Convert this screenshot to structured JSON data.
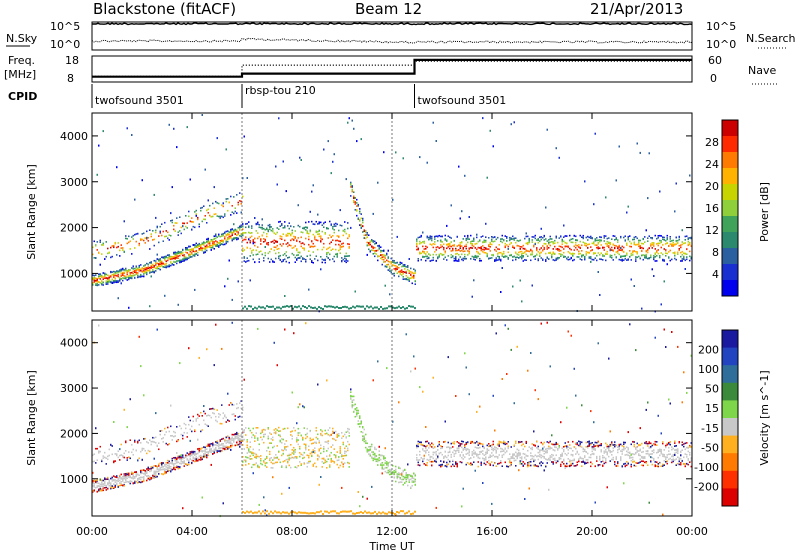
{
  "header": {
    "station": "Blackstone (fitACF)",
    "beam": "Beam 12",
    "date": "21/Apr/2013"
  },
  "noise_panel": {
    "left_label": "N.Sky",
    "right_label": "N.Search",
    "ticks_left": [
      "10^5",
      "10^0"
    ],
    "ticks_right": [
      "10^5",
      "10^0"
    ]
  },
  "freq_panel": {
    "left_label_1": "Freq.",
    "left_label_2": "[MHz]",
    "right_label": "Nave",
    "ticks_left": [
      "18",
      "8"
    ],
    "ticks_right": [
      "60",
      "0"
    ],
    "freq_mhz": [
      [
        0,
        10.2
      ],
      [
        6.0,
        10.2
      ],
      [
        6.0,
        11.5
      ],
      [
        12.9,
        11.5
      ],
      [
        12.9,
        17.2
      ],
      [
        24,
        17.2
      ]
    ],
    "nave": [
      [
        0,
        14
      ],
      [
        6.0,
        14
      ],
      [
        6.0,
        42
      ],
      [
        12.9,
        42
      ],
      [
        12.9,
        52
      ],
      [
        24,
        52
      ]
    ]
  },
  "cpid": {
    "label": "CPID",
    "segments": [
      {
        "text": "twofsound 3501",
        "start": 0,
        "end": 6.0
      },
      {
        "text": "rbsp-tou 210",
        "start": 6.0,
        "end": 12.9
      },
      {
        "text": "twofsound 3501",
        "start": 12.9,
        "end": 24
      }
    ]
  },
  "power_panel": {
    "ylabel": "Slant Range [km]",
    "colorbar_label": "Power [dB]",
    "colorbar_ticks": [
      "28",
      "24",
      "20",
      "16",
      "12",
      "8",
      "4"
    ],
    "colors": [
      "#cc0000",
      "#ff2a00",
      "#ff7a00",
      "#ffb300",
      "#c8d400",
      "#8ecf3a",
      "#3fa35a",
      "#2b8a6e",
      "#2a5fa0",
      "#1a2fd0",
      "#0000ee"
    ]
  },
  "velocity_panel": {
    "ylabel": "Slant Range [km]",
    "colorbar_label": "Velocity [m s^-1]",
    "colorbar_ticks": [
      "200",
      "100",
      "50",
      "15",
      "-15",
      "-50",
      "-100",
      "-200"
    ],
    "colors": [
      "#1a1aa0",
      "#2244c0",
      "#2f6e9a",
      "#3b8a3b",
      "#7ed64a",
      "#c8c8c8",
      "#ffb020",
      "#ff7a00",
      "#ff3000",
      "#dd0000"
    ]
  },
  "axes": {
    "xlabel": "Time UT",
    "xticks": [
      "00:00",
      "04:00",
      "08:00",
      "12:00",
      "16:00",
      "20:00",
      "00:00"
    ],
    "yticks": [
      "1000",
      "2000",
      "3000",
      "4000"
    ]
  },
  "chart_data": {
    "type": "heatmap",
    "title": "Blackstone (fitACF)",
    "x_range_hours": [
      0,
      24
    ],
    "y_range_km": [
      180,
      4500
    ],
    "features": [
      {
        "name": "morning band",
        "points": [
          [
            0.0,
            850
          ],
          [
            2.0,
            1080
          ],
          [
            4.0,
            1500
          ],
          [
            6.0,
            1950
          ]
        ]
      },
      {
        "name": "morning upper band",
        "points": [
          [
            0.0,
            1500
          ],
          [
            2.0,
            1700
          ],
          [
            4.0,
            2200
          ],
          [
            6.0,
            2600
          ]
        ]
      },
      {
        "name": "midday patch",
        "t_start": 6.0,
        "t_end": 10.3,
        "r_low": 1250,
        "r_high": 2150
      },
      {
        "name": "afternoon descending band",
        "points": [
          [
            10.3,
            2900
          ],
          [
            11.0,
            1700
          ],
          [
            12.0,
            1150
          ],
          [
            12.9,
            950
          ]
        ]
      },
      {
        "name": "evening band",
        "t_start": 12.9,
        "t_end": 24,
        "r_low": 1280,
        "r_high": 1850
      }
    ]
  }
}
